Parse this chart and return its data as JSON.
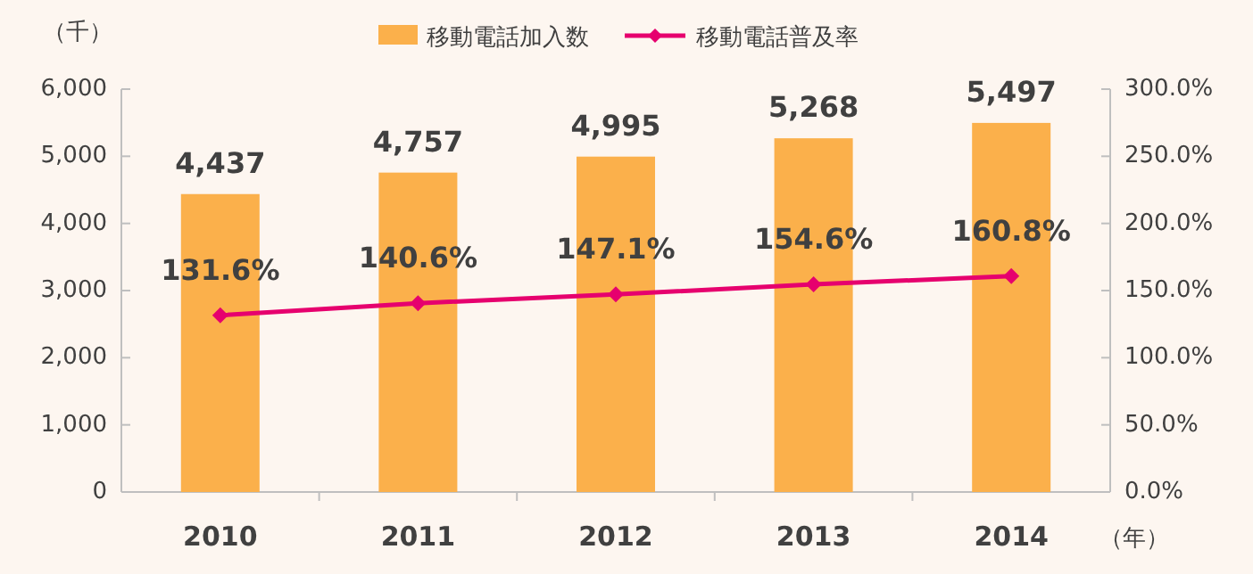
{
  "chart_data": {
    "type": "bar",
    "categories": [
      "2010",
      "2011",
      "2012",
      "2013",
      "2014"
    ],
    "ylabel": "（千）",
    "xlabel": "（年）",
    "legend": "top",
    "series": [
      {
        "name": "移動電話加入数",
        "type": "bar",
        "color": "#fbb04b",
        "values": [
          4437,
          4757,
          4995,
          5268,
          5497
        ],
        "value_labels": [
          "4,437",
          "4,757",
          "4,995",
          "5,268",
          "5,497"
        ]
      },
      {
        "name": "移動電話普及率",
        "type": "line",
        "axis": "y2",
        "color": "#e6006e",
        "marker": "diamond",
        "line_style": "solid",
        "values": [
          131.6,
          140.6,
          147.1,
          154.6,
          160.8
        ],
        "value_labels": [
          "131.6%",
          "140.6%",
          "147.1%",
          "154.6%",
          "160.8%"
        ]
      }
    ],
    "ylim": [
      0,
      6000
    ],
    "yticks": [
      {
        "value": 0,
        "label": "0"
      },
      {
        "value": 1000,
        "label": "1,000"
      },
      {
        "value": 2000,
        "label": "2,000"
      },
      {
        "value": 3000,
        "label": "3,000"
      },
      {
        "value": 4000,
        "label": "4,000"
      },
      {
        "value": 5000,
        "label": "5,000"
      },
      {
        "value": 6000,
        "label": "6,000"
      }
    ],
    "y2lim": [
      0,
      300
    ],
    "y2ticks": [
      {
        "value": 0,
        "label": "0.0%"
      },
      {
        "value": 50,
        "label": "50.0%"
      },
      {
        "value": 100,
        "label": "100.0%"
      },
      {
        "value": 150,
        "label": "150.0%"
      },
      {
        "value": 200,
        "label": "200.0%"
      },
      {
        "value": 250,
        "label": "250.0%"
      },
      {
        "value": 300,
        "label": "300.0%"
      }
    ]
  }
}
